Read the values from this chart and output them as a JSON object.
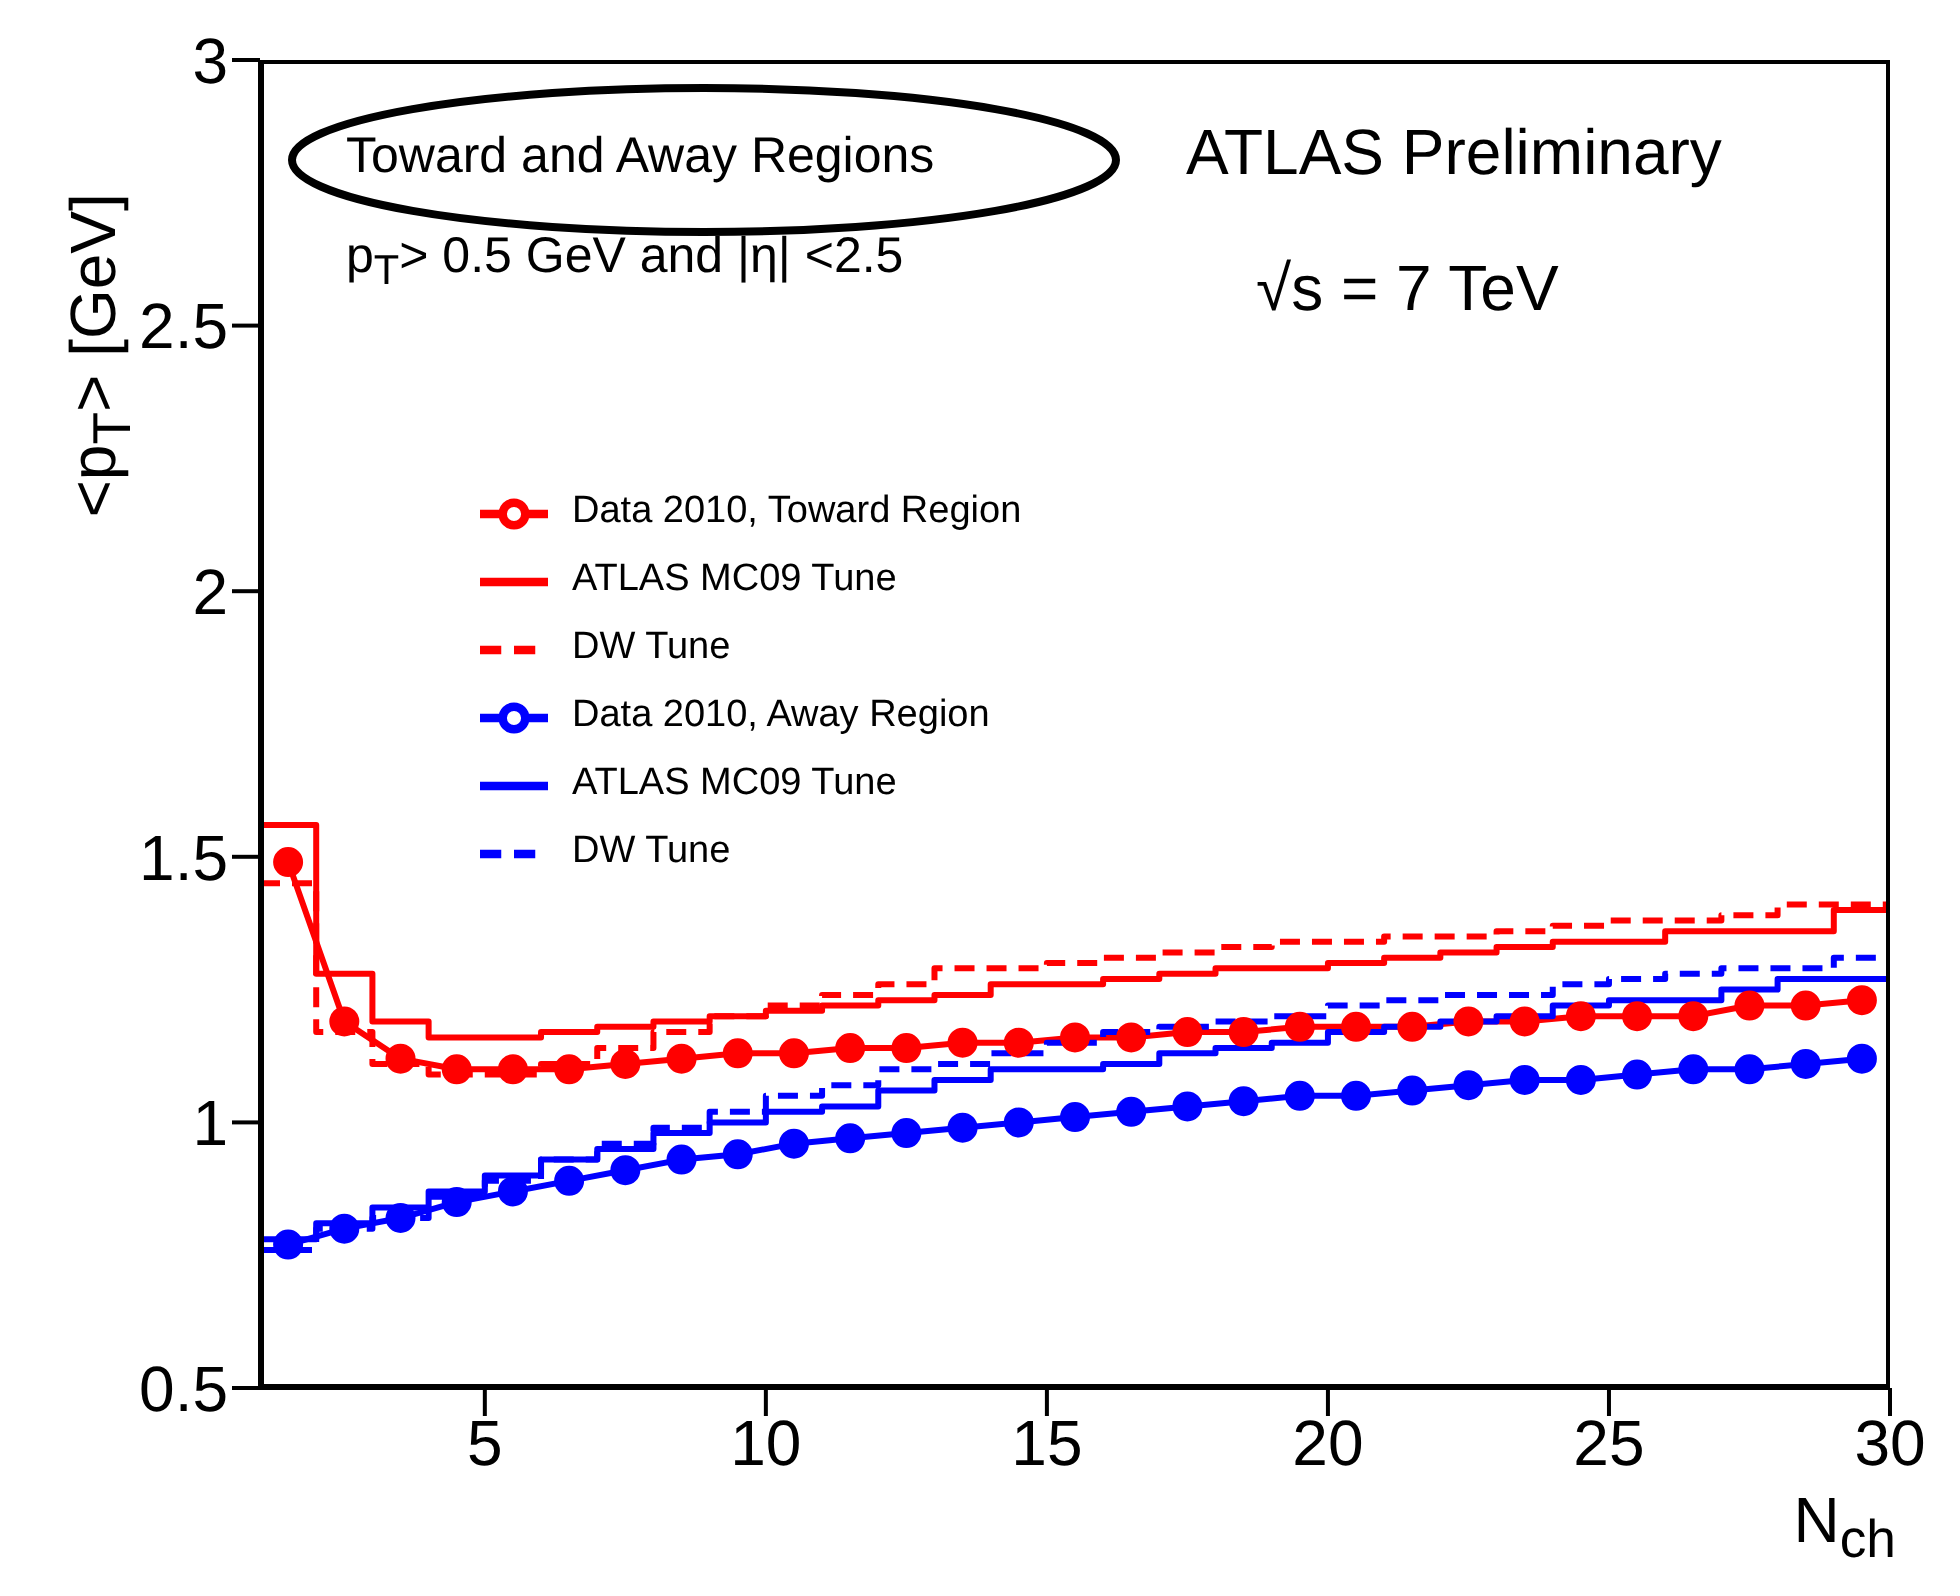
{
  "chart_data": {
    "type": "line",
    "xlabel": "N$_{ch}$",
    "ylabel": "<p$_{T}$> [GeV]",
    "annotations": [
      "Toward and Away Regions",
      "p$_{T}$> 0.5  GeV and |η| <2.5",
      "ATLAS Preliminary",
      "√s = 7 TeV"
    ],
    "xlim": [
      1,
      30
    ],
    "xticks": [
      5,
      10,
      15,
      20,
      25,
      30
    ],
    "ylim": [
      0.5,
      3
    ],
    "yticks": [
      0.5,
      1,
      1.5,
      2,
      2.5,
      3
    ],
    "bins": [
      1,
      2,
      3,
      4,
      5,
      6,
      7,
      8,
      9,
      10,
      11,
      12,
      13,
      14,
      15,
      16,
      17,
      18,
      19,
      20,
      21,
      22,
      23,
      24,
      25,
      26,
      27,
      28,
      29,
      30
    ],
    "grid": false,
    "legend": "left",
    "series": [
      {
        "name": "Data 2010, Toward Region",
        "marker": "circle",
        "line_style": "solid",
        "color": "#ff0000",
        "x": [
          1.5,
          2.5,
          3.5,
          4.5,
          5.5,
          6.5,
          7.5,
          8.5,
          9.5,
          10.5,
          11.5,
          12.5,
          13.5,
          14.5,
          15.5,
          16.5,
          17.5,
          18.5,
          19.5,
          20.5,
          21.5,
          22.5,
          23.5,
          24.5,
          25.5,
          26.5,
          27.5,
          28.5,
          29.5
        ],
        "values": [
          1.49,
          1.19,
          1.12,
          1.1,
          1.1,
          1.1,
          1.11,
          1.12,
          1.13,
          1.13,
          1.14,
          1.14,
          1.15,
          1.15,
          1.16,
          1.16,
          1.17,
          1.17,
          1.18,
          1.18,
          1.18,
          1.19,
          1.19,
          1.2,
          1.2,
          1.2,
          1.22,
          1.22,
          1.23
        ]
      },
      {
        "name": "ATLAS MC09 Tune",
        "type": "histogram",
        "line_style": "solid",
        "color": "#ff0000",
        "values": [
          1.56,
          1.28,
          1.19,
          1.16,
          1.16,
          1.17,
          1.18,
          1.19,
          1.2,
          1.21,
          1.22,
          1.23,
          1.24,
          1.26,
          1.26,
          1.27,
          1.28,
          1.29,
          1.29,
          1.3,
          1.31,
          1.32,
          1.33,
          1.34,
          1.34,
          1.36,
          1.36,
          1.36,
          1.4
        ]
      },
      {
        "name": "DW Tune",
        "type": "histogram",
        "line_style": "dashed",
        "color": "#ff0000",
        "values": [
          1.45,
          1.17,
          1.11,
          1.09,
          1.09,
          1.11,
          1.14,
          1.17,
          1.2,
          1.22,
          1.24,
          1.26,
          1.29,
          1.29,
          1.3,
          1.31,
          1.32,
          1.33,
          1.34,
          1.34,
          1.35,
          1.35,
          1.36,
          1.37,
          1.38,
          1.38,
          1.39,
          1.41,
          1.41
        ]
      },
      {
        "name": "Data 2010, Away Region",
        "marker": "circle",
        "line_style": "solid",
        "color": "#0000ff",
        "x": [
          1.5,
          2.5,
          3.5,
          4.5,
          5.5,
          6.5,
          7.5,
          8.5,
          9.5,
          10.5,
          11.5,
          12.5,
          13.5,
          14.5,
          15.5,
          16.5,
          17.5,
          18.5,
          19.5,
          20.5,
          21.5,
          22.5,
          23.5,
          24.5,
          25.5,
          26.5,
          27.5,
          28.5,
          29.5
        ],
        "values": [
          0.77,
          0.8,
          0.82,
          0.85,
          0.87,
          0.89,
          0.91,
          0.93,
          0.94,
          0.96,
          0.97,
          0.98,
          0.99,
          1.0,
          1.01,
          1.02,
          1.03,
          1.04,
          1.05,
          1.05,
          1.06,
          1.07,
          1.08,
          1.08,
          1.09,
          1.1,
          1.1,
          1.11,
          1.12
        ]
      },
      {
        "name": "ATLAS MC09 Tune",
        "type": "histogram",
        "line_style": "solid",
        "color": "#0000ff",
        "values": [
          0.78,
          0.81,
          0.84,
          0.87,
          0.9,
          0.93,
          0.95,
          0.98,
          1.0,
          1.02,
          1.03,
          1.06,
          1.08,
          1.1,
          1.1,
          1.11,
          1.13,
          1.14,
          1.15,
          1.17,
          1.18,
          1.19,
          1.2,
          1.22,
          1.23,
          1.23,
          1.25,
          1.27,
          1.27
        ]
      },
      {
        "name": "DW Tune",
        "type": "histogram",
        "line_style": "dashed",
        "color": "#0000ff",
        "values": [
          0.76,
          0.8,
          0.82,
          0.86,
          0.89,
          0.93,
          0.96,
          0.99,
          1.02,
          1.05,
          1.07,
          1.1,
          1.11,
          1.13,
          1.15,
          1.17,
          1.18,
          1.19,
          1.2,
          1.22,
          1.23,
          1.24,
          1.24,
          1.26,
          1.27,
          1.28,
          1.29,
          1.29,
          1.31
        ]
      }
    ]
  }
}
